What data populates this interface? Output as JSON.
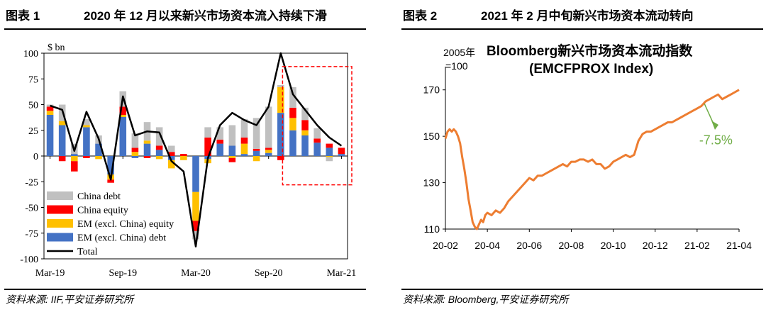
{
  "figures": [
    {
      "label": "图表 1",
      "title": "2020 年 12 月以来新兴市场资本流入持续下滑",
      "source": "资料来源: IIF,平安证券研究所"
    },
    {
      "label": "图表 2",
      "title": "2021 年 2 月中旬新兴市场资本流动转向",
      "source": "资料来源: Bloomberg,平安证券研究所"
    }
  ],
  "chart_data": [
    {
      "type": "bar",
      "stacked": true,
      "unit_label": "$ bn",
      "ylim": [
        -100,
        100
      ],
      "yticks": [
        100,
        75,
        50,
        25,
        0,
        -25,
        -50,
        -75,
        -100
      ],
      "xtick_labels": [
        "Mar-19",
        "Sep-19",
        "Mar-20",
        "Sep-20",
        "Mar-21"
      ],
      "xtick_index": [
        0,
        6,
        12,
        18,
        24
      ],
      "categories": [
        "Mar-19",
        "Apr-19",
        "May-19",
        "Jun-19",
        "Jul-19",
        "Aug-19",
        "Sep-19",
        "Oct-19",
        "Nov-19",
        "Dec-19",
        "Jan-20",
        "Feb-20",
        "Mar-20",
        "Apr-20",
        "May-20",
        "Jun-20",
        "Jul-20",
        "Aug-20",
        "Sep-20",
        "Oct-20",
        "Nov-20",
        "Dec-20",
        "Jan-21",
        "Feb-21",
        "Mar-21"
      ],
      "series": [
        {
          "name": "EM (excl. China) debt",
          "color": "#4472c4",
          "values": [
            40,
            30,
            2,
            28,
            12,
            -18,
            38,
            -2,
            12,
            6,
            -4,
            0,
            -35,
            -3,
            12,
            10,
            2,
            5,
            3,
            42,
            25,
            20,
            13,
            8,
            2
          ]
        },
        {
          "name": "EM (excl. China) equity",
          "color": "#ffc000",
          "values": [
            4,
            4,
            -5,
            2,
            -3,
            -5,
            2,
            4,
            3,
            -3,
            -8,
            -4,
            -28,
            -4,
            0,
            -2,
            10,
            -5,
            3,
            25,
            12,
            5,
            0,
            -1,
            0
          ]
        },
        {
          "name": "China equity",
          "color": "#ff0000",
          "values": [
            4,
            -5,
            -10,
            -2,
            0,
            -3,
            8,
            4,
            -2,
            4,
            4,
            2,
            -10,
            18,
            4,
            -4,
            6,
            2,
            2,
            -4,
            10,
            10,
            4,
            4,
            6
          ]
        },
        {
          "name": "China debt",
          "color": "#c0c0c0",
          "values": [
            2,
            16,
            10,
            6,
            8,
            0,
            15,
            14,
            18,
            18,
            6,
            0,
            -8,
            10,
            12,
            20,
            18,
            30,
            40,
            2,
            20,
            12,
            10,
            -4,
            0
          ]
        }
      ],
      "total": {
        "name": "Total",
        "color": "#000000",
        "values": [
          49,
          45,
          5,
          43,
          17,
          -23,
          58,
          20,
          24,
          23,
          -5,
          -15,
          -88,
          -2,
          30,
          42,
          35,
          30,
          48,
          100,
          60,
          45,
          30,
          18,
          10
        ]
      },
      "legend": [
        "China debt",
        "China equity",
        "EM (excl. China) equity",
        "EM (excl. China) debt",
        "Total"
      ],
      "legend_position": "bottom-left",
      "highlight_box": {
        "from_index": 20,
        "to_index": 24,
        "y_top": 87,
        "y_bottom": -28,
        "color": "#ff0000",
        "style": "dashed"
      }
    },
    {
      "type": "line",
      "title_line1": "Bloomberg新兴市场资本流动指数",
      "title_line2": "(EMCFPROX Index)",
      "base_label_1": "2005年",
      "base_label_2": "=100",
      "ylim": [
        110,
        180
      ],
      "yticks": [
        110,
        130,
        150,
        170
      ],
      "xtick_labels": [
        "20-02",
        "20-04",
        "20-06",
        "20-08",
        "20-10",
        "20-12",
        "21-02",
        "21-04"
      ],
      "xlim_months": [
        0,
        14
      ],
      "series": [
        {
          "name": "EMCFPROX Index",
          "color": "#ed7d31",
          "x": [
            0.0,
            0.1,
            0.2,
            0.3,
            0.4,
            0.5,
            0.6,
            0.7,
            0.8,
            0.9,
            1.0,
            1.1,
            1.2,
            1.3,
            1.4,
            1.5,
            1.6,
            1.7,
            1.8,
            1.9,
            2.0,
            2.2,
            2.4,
            2.6,
            2.8,
            3.0,
            3.2,
            3.4,
            3.6,
            3.8,
            4.0,
            4.2,
            4.4,
            4.6,
            4.8,
            5.0,
            5.2,
            5.4,
            5.6,
            5.8,
            6.0,
            6.2,
            6.4,
            6.6,
            6.8,
            7.0,
            7.2,
            7.4,
            7.6,
            7.8,
            8.0,
            8.2,
            8.4,
            8.6,
            8.8,
            9.0,
            9.2,
            9.4,
            9.6,
            9.8,
            10.0,
            10.2,
            10.4,
            10.6,
            10.8,
            11.0,
            11.2,
            11.4,
            11.6,
            11.8,
            12.0,
            12.2,
            12.4,
            12.6,
            12.8,
            13.0,
            13.2,
            13.4,
            13.6,
            13.8,
            14.0
          ],
          "y": [
            149,
            152,
            153,
            152,
            153,
            152,
            150,
            147,
            141,
            136,
            130,
            123,
            118,
            113,
            111,
            110,
            112,
            114,
            113,
            116,
            117,
            116,
            118,
            117,
            119,
            122,
            124,
            126,
            128,
            130,
            132,
            131,
            133,
            133,
            134,
            135,
            136,
            137,
            138,
            137,
            139,
            139,
            140,
            140,
            139,
            140,
            138,
            138,
            136,
            137,
            139,
            140,
            141,
            142,
            141,
            142,
            148,
            151,
            152,
            152,
            153,
            154,
            155,
            156,
            156,
            157,
            158,
            159,
            160,
            161,
            162,
            163,
            165,
            166,
            167,
            168,
            166,
            167,
            168,
            169,
            170
          ],
          "annotation": "-7.5%"
        }
      ],
      "annotation": {
        "text": "-7.5%",
        "color": "#70ad47"
      }
    }
  ]
}
